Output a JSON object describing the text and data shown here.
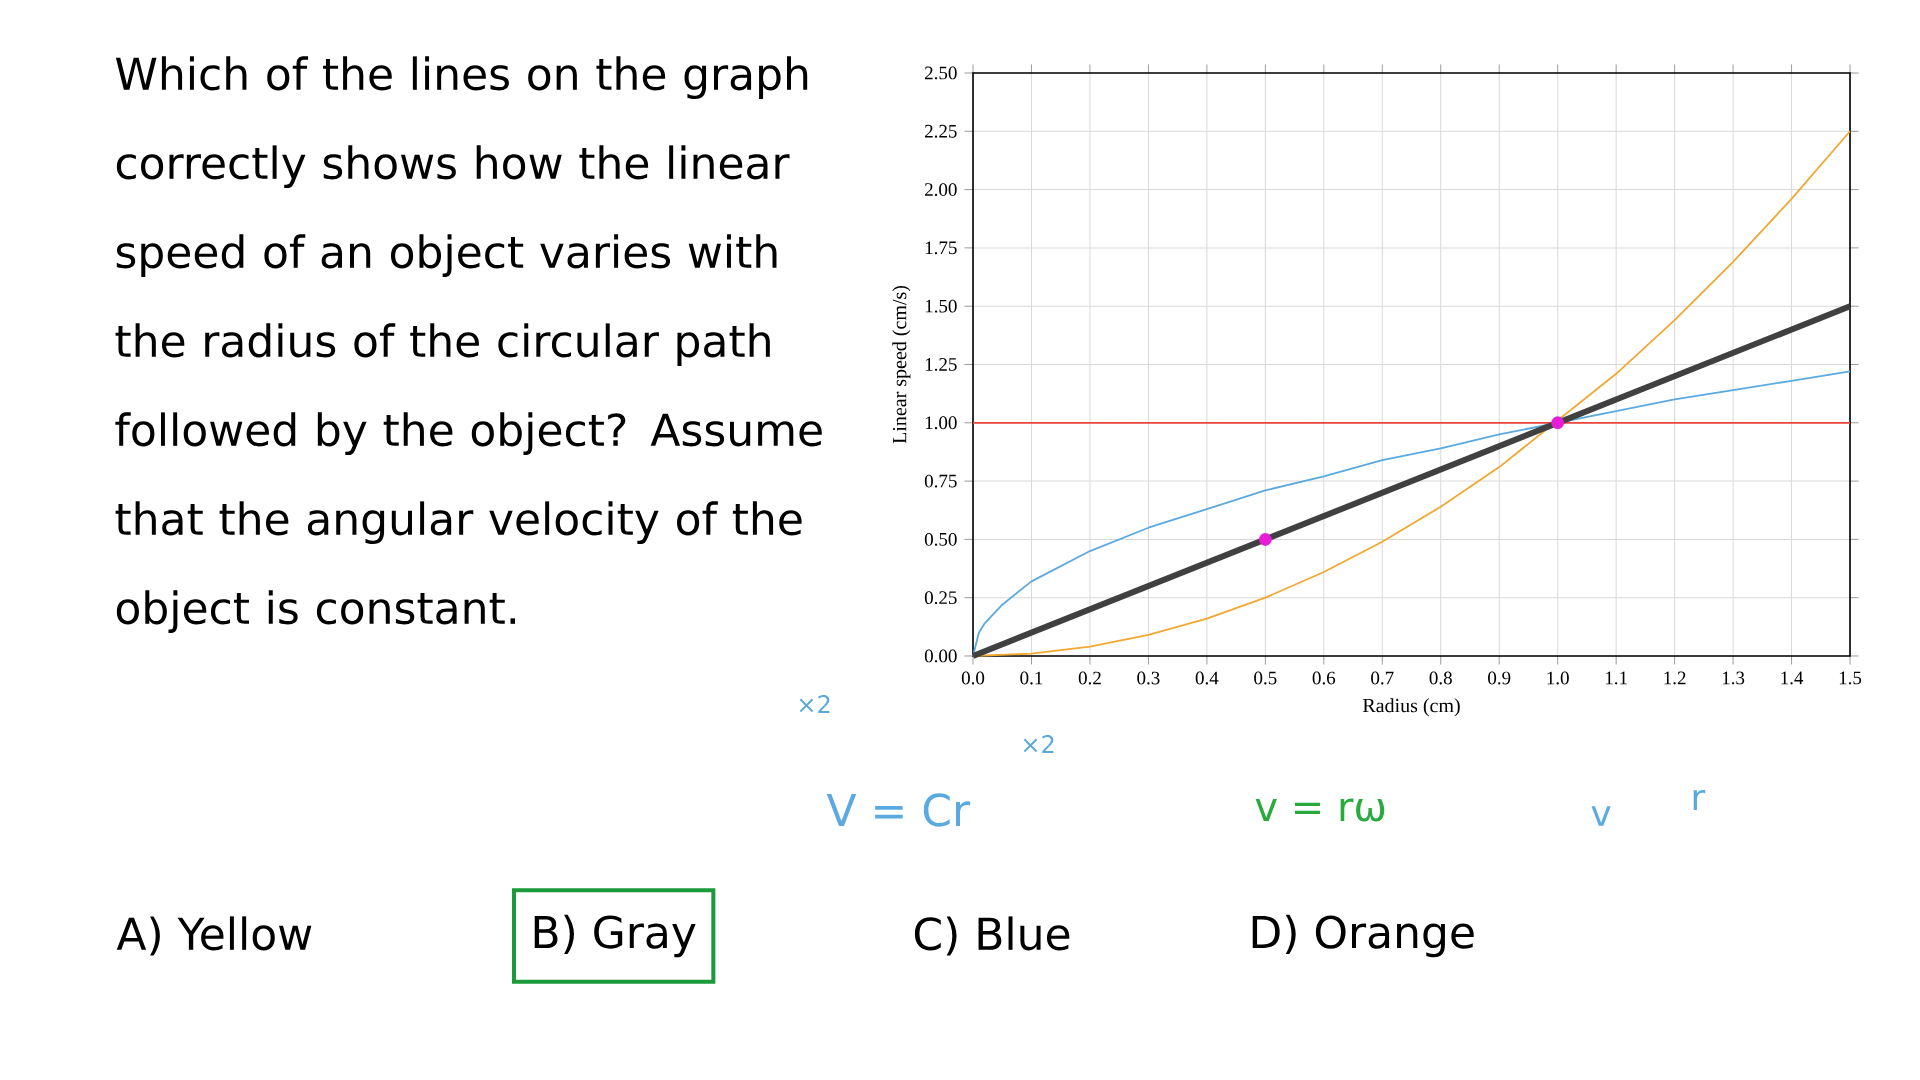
{
  "chart_data": {
    "type": "line",
    "xlabel": "Radius (cm)",
    "ylabel": "Linear speed (cm/s)",
    "xlim": [
      0,
      1.5
    ],
    "ylim": [
      0,
      2.5
    ],
    "xticks": [
      {
        "value": 0,
        "label": "0.0"
      },
      {
        "value": 0.1,
        "label": "0.1"
      },
      {
        "value": 0.2,
        "label": "0.2"
      },
      {
        "value": 0.3,
        "label": "0.3"
      },
      {
        "value": 0.4,
        "label": "0.4"
      },
      {
        "value": 0.5,
        "label": "0.5"
      },
      {
        "value": 0.6,
        "label": "0.6"
      },
      {
        "value": 0.7,
        "label": "0.7"
      },
      {
        "value": 0.8,
        "label": "0.8"
      },
      {
        "value": 0.9,
        "label": "0.9"
      },
      {
        "value": 1.0,
        "label": "1.0"
      },
      {
        "value": 1.1,
        "label": "1.1"
      },
      {
        "value": 1.2,
        "label": "1.2"
      },
      {
        "value": 1.3,
        "label": "1.3"
      },
      {
        "value": 1.4,
        "label": "1.4"
      },
      {
        "value": 1.5,
        "label": "1.5"
      }
    ],
    "yticks": [
      {
        "value": 0,
        "label": "0.00"
      },
      {
        "value": 0.25,
        "label": "0.25"
      },
      {
        "value": 0.5,
        "label": "0.50"
      },
      {
        "value": 0.75,
        "label": "0.75"
      },
      {
        "value": 1.0,
        "label": "1.00"
      },
      {
        "value": 1.25,
        "label": "1.25"
      },
      {
        "value": 1.5,
        "label": "1.50"
      },
      {
        "value": 1.75,
        "label": "1.75"
      },
      {
        "value": 2.0,
        "label": "2.00"
      },
      {
        "value": 2.25,
        "label": "2.25"
      },
      {
        "value": 2.5,
        "label": "2.50"
      }
    ],
    "grid": true,
    "series": [
      {
        "color": "#e8453c",
        "x": [
          0,
          1.5
        ],
        "values": [
          1.0,
          1.0
        ]
      },
      {
        "color": "#5aa9e0",
        "x": [
          0,
          0.01,
          0.02,
          0.05,
          0.1,
          0.2,
          0.3,
          0.4,
          0.5,
          0.6,
          0.7,
          0.8,
          0.9,
          1.0,
          1.1,
          1.2,
          1.3,
          1.4,
          1.5
        ],
        "values": [
          0,
          0.1,
          0.14,
          0.22,
          0.32,
          0.45,
          0.55,
          0.63,
          0.71,
          0.77,
          0.84,
          0.89,
          0.95,
          null,
          1.05,
          1.1,
          1.14,
          1.18,
          1.22
        ]
      },
      {
        "color": "#f0a830",
        "x": [
          0,
          0.1,
          0.2,
          0.3,
          0.4,
          0.5,
          0.6,
          0.7,
          0.8,
          0.9,
          1.0,
          1.1,
          1.2,
          1.3,
          1.4,
          1.5
        ],
        "values": [
          0,
          0.01,
          0.04,
          0.09,
          0.16,
          0.25,
          0.36,
          0.49,
          0.64,
          0.81,
          null,
          1.21,
          1.44,
          1.69,
          1.96,
          2.25
        ]
      },
      {
        "color": "#404040",
        "x": [
          0,
          1.5
        ],
        "values": [
          0,
          1.5
        ]
      },
      {
        "type": "scatter",
        "marker": "circle",
        "color": "#e81cd8",
        "x": [
          0.5,
          1.0
        ],
        "values": [
          0.5,
          1.0
        ]
      }
    ],
    "annotations": [
      "Which of the lines on the graph correctly shows how the linear speed of an object varies with the radius of the circular path followed by the object? Assume that the angular velocity of the object is constant.",
      "A) Yellow",
      "B) Gray",
      "C) Blue",
      "D) Orange",
      "V = Cr",
      "v = rω",
      "×2",
      "×2",
      "v",
      "r"
    ]
  }
}
